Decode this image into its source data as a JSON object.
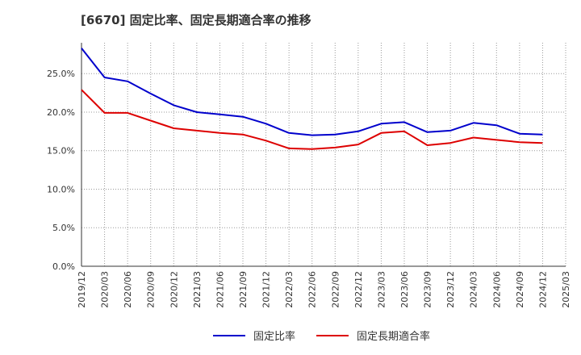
{
  "title": "[6670]  固定比率、固定長期適合率の推移",
  "chart_data": {
    "type": "line",
    "title": "[6670]  固定比率、固定長期適合率の推移",
    "xlabel": "",
    "ylabel": "",
    "ylim": [
      0,
      0.29
    ],
    "yticks": [
      0.0,
      0.05,
      0.1,
      0.15,
      0.2,
      0.25
    ],
    "ytick_labels": [
      "0.0%",
      "5.0%",
      "10.0%",
      "15.0%",
      "20.0%",
      "25.0%"
    ],
    "categories": [
      "2019/12",
      "2020/03",
      "2020/06",
      "2020/09",
      "2020/12",
      "2021/03",
      "2021/06",
      "2021/09",
      "2021/12",
      "2022/03",
      "2022/06",
      "2022/09",
      "2022/12",
      "2023/03",
      "2023/06",
      "2023/09",
      "2023/12",
      "2024/03",
      "2024/06",
      "2024/09",
      "2024/12",
      "2025/03"
    ],
    "grid": true,
    "legend_position": "bottom",
    "series": [
      {
        "name": "固定比率",
        "color": "#0000cc",
        "values": [
          0.283,
          0.245,
          0.24,
          0.224,
          0.209,
          0.2,
          0.197,
          0.194,
          0.185,
          0.173,
          0.17,
          0.171,
          0.175,
          0.185,
          0.187,
          0.174,
          0.176,
          0.186,
          0.183,
          0.172,
          0.171,
          null
        ]
      },
      {
        "name": "固定長期適合率",
        "color": "#dd0000",
        "values": [
          0.229,
          0.199,
          0.199,
          0.189,
          0.179,
          0.176,
          0.173,
          0.171,
          0.163,
          0.153,
          0.152,
          0.154,
          0.158,
          0.173,
          0.175,
          0.157,
          0.16,
          0.167,
          0.164,
          0.161,
          0.16,
          null
        ]
      }
    ]
  }
}
